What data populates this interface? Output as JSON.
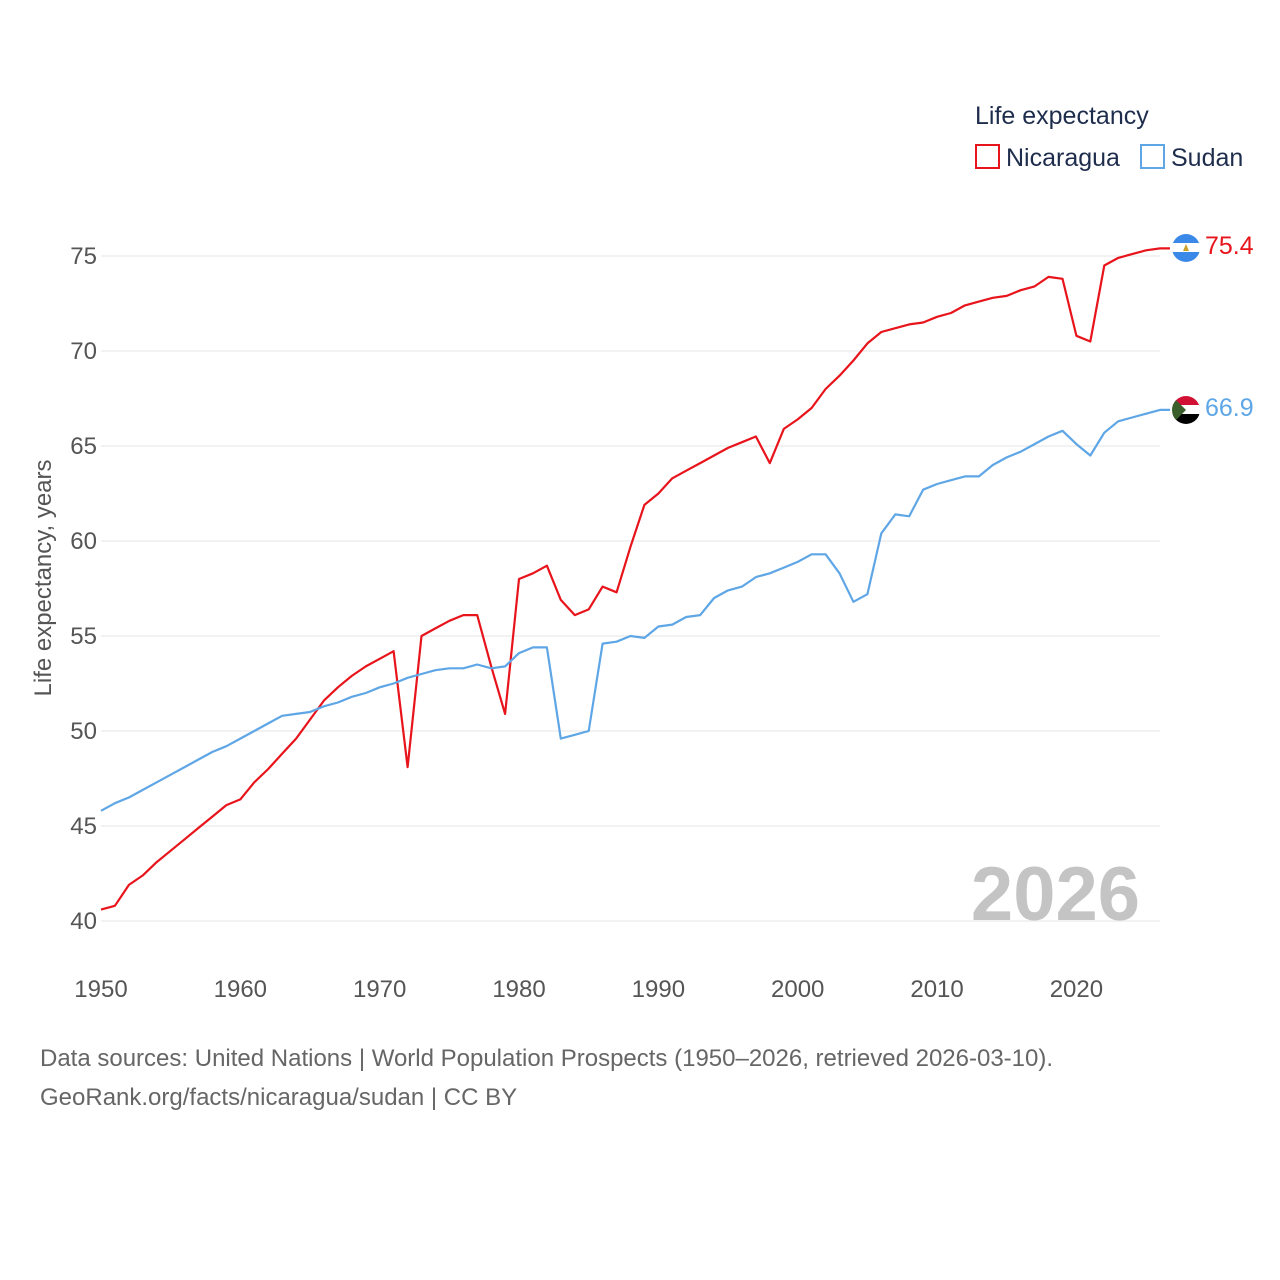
{
  "chart_data": {
    "type": "line",
    "legend_title": "Life expectancy",
    "ylabel": "Life expectancy, years",
    "xlim": [
      1950,
      2026
    ],
    "ylim": [
      38,
      77
    ],
    "yticks": [
      40,
      45,
      50,
      55,
      60,
      65,
      70,
      75
    ],
    "xticks": [
      1950,
      1960,
      1970,
      1980,
      1990,
      2000,
      2010,
      2020
    ],
    "year_label": "2026",
    "grid": true,
    "legend_position": "top-right",
    "x": [
      1950,
      1951,
      1952,
      1953,
      1954,
      1955,
      1956,
      1957,
      1958,
      1959,
      1960,
      1961,
      1962,
      1963,
      1964,
      1965,
      1966,
      1967,
      1968,
      1969,
      1970,
      1971,
      1972,
      1973,
      1974,
      1975,
      1976,
      1977,
      1978,
      1979,
      1980,
      1981,
      1982,
      1983,
      1984,
      1985,
      1986,
      1987,
      1988,
      1989,
      1990,
      1991,
      1992,
      1993,
      1994,
      1995,
      1996,
      1997,
      1998,
      1999,
      2000,
      2001,
      2002,
      2003,
      2004,
      2005,
      2006,
      2007,
      2008,
      2009,
      2010,
      2011,
      2012,
      2013,
      2014,
      2015,
      2016,
      2017,
      2018,
      2019,
      2020,
      2021,
      2022,
      2023,
      2024,
      2025,
      2026
    ],
    "series": [
      {
        "name": "Nicaragua",
        "color": "#e8141b",
        "end_label": "75.4",
        "values": [
          40.6,
          40.8,
          41.9,
          42.4,
          43.1,
          43.7,
          44.3,
          44.9,
          45.5,
          46.1,
          46.4,
          47.3,
          48.0,
          48.8,
          49.6,
          50.6,
          51.6,
          52.3,
          52.9,
          53.4,
          53.8,
          54.2,
          48.1,
          55.0,
          55.4,
          55.8,
          56.1,
          56.1,
          53.4,
          50.9,
          58.0,
          58.3,
          58.7,
          56.9,
          56.1,
          56.4,
          57.6,
          57.3,
          59.7,
          61.9,
          62.5,
          63.3,
          63.7,
          64.1,
          64.5,
          64.9,
          65.2,
          65.5,
          64.1,
          65.9,
          66.4,
          67.0,
          68.0,
          68.7,
          69.5,
          70.4,
          71.0,
          71.2,
          71.4,
          71.5,
          71.8,
          72.0,
          72.4,
          72.6,
          72.8,
          72.9,
          73.2,
          73.4,
          73.9,
          73.8,
          70.8,
          70.5,
          74.5,
          74.9,
          75.1,
          75.3,
          75.4
        ]
      },
      {
        "name": "Sudan",
        "color": "#5ea6e5",
        "end_label": "66.9",
        "values": [
          45.8,
          46.2,
          46.5,
          46.9,
          47.3,
          47.7,
          48.1,
          48.5,
          48.9,
          49.2,
          49.6,
          50.0,
          50.4,
          50.8,
          50.9,
          51.0,
          51.3,
          51.5,
          51.8,
          52.0,
          52.3,
          52.5,
          52.8,
          53.0,
          53.2,
          53.3,
          53.3,
          53.5,
          53.3,
          53.4,
          54.1,
          54.4,
          54.4,
          49.6,
          49.8,
          50.0,
          54.6,
          54.7,
          55.0,
          54.9,
          55.5,
          55.6,
          56.0,
          56.1,
          57.0,
          57.4,
          57.6,
          58.1,
          58.3,
          58.6,
          58.9,
          59.3,
          59.3,
          58.3,
          56.8,
          57.2,
          60.4,
          61.4,
          61.3,
          62.7,
          63.0,
          63.2,
          63.4,
          63.4,
          64.0,
          64.4,
          64.7,
          65.1,
          65.5,
          65.8,
          65.1,
          64.5,
          65.7,
          66.3,
          66.5,
          66.7,
          66.9
        ]
      }
    ]
  },
  "footer": {
    "line1": "Data sources: United Nations | World Population Prospects (1950–2026, retrieved 2026-03-10).",
    "line2": "GeoRank.org/facts/nicaragua/sudan | CC BY"
  }
}
